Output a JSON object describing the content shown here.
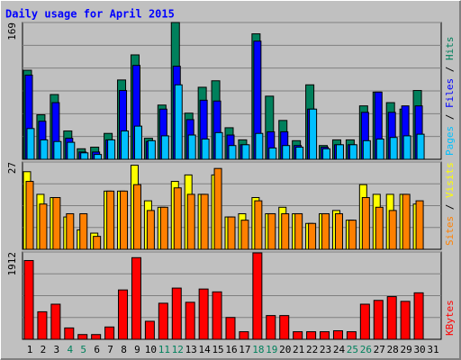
{
  "title": "Daily usage for April 2015",
  "legend_separator": " / ",
  "chart_data": [
    {
      "type": "bar",
      "ylim": [
        0,
        169
      ],
      "yticks": [
        169
      ],
      "grid_divisions": 6,
      "categories": [
        "1",
        "2",
        "3",
        "4",
        "5",
        "6",
        "7",
        "8",
        "9",
        "10",
        "11",
        "12",
        "13",
        "14",
        "15",
        "16",
        "17",
        "18",
        "19",
        "20",
        "21",
        "22",
        "23",
        "24",
        "25",
        "26",
        "27",
        "28",
        "29",
        "30",
        "31"
      ],
      "category_colors": [
        "#000000",
        "#000000",
        "#000000",
        "#00805c",
        "#00805c",
        "#000000",
        "#000000",
        "#000000",
        "#000000",
        "#000000",
        "#00805c",
        "#00805c",
        "#000000",
        "#000000",
        "#000000",
        "#000000",
        "#000000",
        "#00805c",
        "#00805c",
        "#000000",
        "#000000",
        "#000000",
        "#000000",
        "#000000",
        "#00805c",
        "#00805c",
        "#000000",
        "#000000",
        "#000000",
        "#000000",
        "#000000"
      ],
      "series": [
        {
          "name": "Hits",
          "color": "#00805c",
          "values": [
            110,
            55,
            80,
            35,
            13,
            15,
            32,
            98,
            129,
            26,
            67,
            169,
            57,
            89,
            97,
            39,
            24,
            155,
            78,
            48,
            23,
            92,
            17,
            24,
            24,
            66,
            83,
            70,
            62,
            85,
            null
          ]
        },
        {
          "name": "Files",
          "color": "#0000ff",
          "values": [
            104,
            47,
            70,
            26,
            9,
            9,
            24,
            85,
            116,
            22,
            62,
            115,
            49,
            73,
            72,
            30,
            18,
            146,
            34,
            34,
            17,
            62,
            15,
            18,
            18,
            58,
            83,
            58,
            66,
            66,
            null
          ]
        },
        {
          "name": "Pages",
          "color": "#00c0ff",
          "values": [
            38,
            24,
            22,
            21,
            8,
            6,
            24,
            35,
            41,
            23,
            29,
            92,
            30,
            25,
            33,
            17,
            18,
            32,
            14,
            17,
            15,
            62,
            13,
            18,
            18,
            23,
            25,
            27,
            29,
            31,
            null
          ]
        }
      ]
    },
    {
      "type": "bar",
      "ylim": [
        0,
        27
      ],
      "yticks": [
        27
      ],
      "grid_divisions": 4,
      "series": [
        {
          "name": "Visits",
          "color": "#ffff00",
          "values": [
            24,
            17,
            16,
            10,
            6,
            5,
            18,
            18,
            26,
            15,
            13,
            21,
            23,
            17,
            23,
            10,
            11,
            16,
            11,
            13,
            11,
            8,
            11,
            12,
            9,
            20,
            17,
            17,
            17,
            14,
            null
          ]
        },
        {
          "name": "Sites",
          "color": "#ff8000",
          "values": [
            21,
            14,
            16,
            11,
            11,
            4,
            18,
            18,
            20,
            12,
            13,
            19,
            17,
            17,
            25,
            10,
            9,
            15,
            11,
            11,
            11,
            8,
            11,
            11,
            9,
            16,
            13,
            12,
            17,
            15,
            null
          ]
        }
      ]
    },
    {
      "type": "bar",
      "ylim": [
        0,
        1912
      ],
      "yticks": [
        1912
      ],
      "grid_divisions": 4,
      "series": [
        {
          "name": "KBytes",
          "color": "#ff0000",
          "values": [
            1725,
            603,
            769,
            249,
            104,
            104,
            270,
            1081,
            1788,
            395,
            790,
            1122,
            811,
            1101,
            1039,
            478,
            166,
            1892,
            520,
            520,
            166,
            166,
            166,
            187,
            166,
            769,
            852,
            935,
            831,
            1018,
            null
          ]
        }
      ]
    }
  ]
}
